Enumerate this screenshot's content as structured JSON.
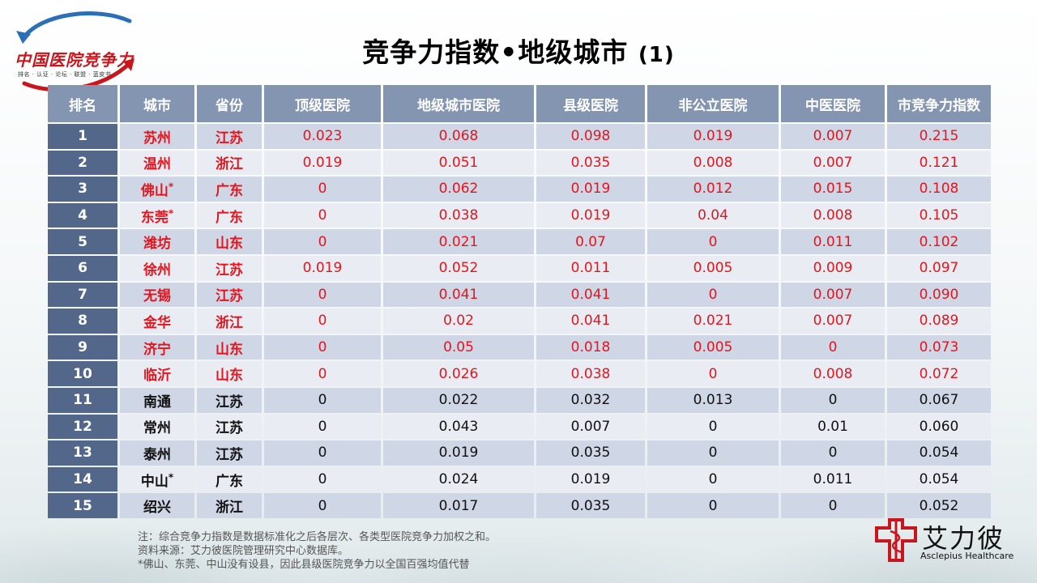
{
  "logo": {
    "title": "中国医院竞争力",
    "subtitle": "排名 · 认证 · 论坛 · 联盟 · 蓝皮书"
  },
  "title": {
    "main": "竞争力指数•地级城市",
    "suffix": "(1)"
  },
  "table": {
    "headers": [
      "排名",
      "城市",
      "省份",
      "顶级医院",
      "地级城市医院",
      "县级医院",
      "非公立医院",
      "中医医院",
      "市竞争力指数"
    ],
    "rows": [
      {
        "rank": "1",
        "city": "苏州",
        "star": "",
        "province": "江苏",
        "top": "0.023",
        "prefecture": "0.068",
        "county": "0.098",
        "private": "0.019",
        "tcm": "0.007",
        "index": "0.215"
      },
      {
        "rank": "2",
        "city": "温州",
        "star": "",
        "province": "浙江",
        "top": "0.019",
        "prefecture": "0.051",
        "county": "0.035",
        "private": "0.008",
        "tcm": "0.007",
        "index": "0.121"
      },
      {
        "rank": "3",
        "city": "佛山",
        "star": "*",
        "province": "广东",
        "top": "0",
        "prefecture": "0.062",
        "county": "0.019",
        "private": "0.012",
        "tcm": "0.015",
        "index": "0.108"
      },
      {
        "rank": "4",
        "city": "东莞",
        "star": "*",
        "province": "广东",
        "top": "0",
        "prefecture": "0.038",
        "county": "0.019",
        "private": "0.04",
        "tcm": "0.008",
        "index": "0.105"
      },
      {
        "rank": "5",
        "city": "潍坊",
        "star": "",
        "province": "山东",
        "top": "0",
        "prefecture": "0.021",
        "county": "0.07",
        "private": "0",
        "tcm": "0.011",
        "index": "0.102"
      },
      {
        "rank": "6",
        "city": "徐州",
        "star": "",
        "province": "江苏",
        "top": "0.019",
        "prefecture": "0.052",
        "county": "0.011",
        "private": "0.005",
        "tcm": "0.009",
        "index": "0.097"
      },
      {
        "rank": "7",
        "city": "无锡",
        "star": "",
        "province": "江苏",
        "top": "0",
        "prefecture": "0.041",
        "county": "0.041",
        "private": "0",
        "tcm": "0.007",
        "index": "0.090"
      },
      {
        "rank": "8",
        "city": "金华",
        "star": "",
        "province": "浙江",
        "top": "0",
        "prefecture": "0.02",
        "county": "0.041",
        "private": "0.021",
        "tcm": "0.007",
        "index": "0.089"
      },
      {
        "rank": "9",
        "city": "济宁",
        "star": "",
        "province": "山东",
        "top": "0",
        "prefecture": "0.05",
        "county": "0.018",
        "private": "0.005",
        "tcm": "0",
        "index": "0.073"
      },
      {
        "rank": "10",
        "city": "临沂",
        "star": "",
        "province": "山东",
        "top": "0",
        "prefecture": "0.026",
        "county": "0.038",
        "private": "0",
        "tcm": "0.008",
        "index": "0.072"
      },
      {
        "rank": "11",
        "city": "南通",
        "star": "",
        "province": "江苏",
        "top": "0",
        "prefecture": "0.022",
        "county": "0.032",
        "private": "0.013",
        "tcm": "0",
        "index": "0.067"
      },
      {
        "rank": "12",
        "city": "常州",
        "star": "",
        "province": "江苏",
        "top": "0",
        "prefecture": "0.043",
        "county": "0.007",
        "private": "0",
        "tcm": "0.01",
        "index": "0.060"
      },
      {
        "rank": "13",
        "city": "泰州",
        "star": "",
        "province": "江苏",
        "top": "0",
        "prefecture": "0.019",
        "county": "0.035",
        "private": "0",
        "tcm": "0",
        "index": "0.054"
      },
      {
        "rank": "14",
        "city": "中山",
        "star": "*",
        "province": "广东",
        "top": "0",
        "prefecture": "0.024",
        "county": "0.019",
        "private": "0",
        "tcm": "0.011",
        "index": "0.054"
      },
      {
        "rank": "15",
        "city": "绍兴",
        "star": "",
        "province": "浙江",
        "top": "0",
        "prefecture": "0.017",
        "county": "0.035",
        "private": "0",
        "tcm": "0",
        "index": "0.052"
      }
    ],
    "highlight_count": 10,
    "highlight_color": "#e2161e"
  },
  "notes": [
    "注：综合竞争力指数是数据标准化之后各层次、各类型医院竞争力加权之和。",
    "资料来源：艾力彼医院管理研究中心数据库。",
    "*佛山、东莞、中山没有设县，因此县级医院竞争力以全国百强均值代替"
  ],
  "brand": {
    "name": "艾力彼",
    "english": "Asclepius Healthcare"
  },
  "colors": {
    "header": "#8495b2",
    "rank_col": "#53678a",
    "row_odd": "#cfd6e6",
    "row_even": "#e9ecf3",
    "brand_red": "#c8161d"
  }
}
